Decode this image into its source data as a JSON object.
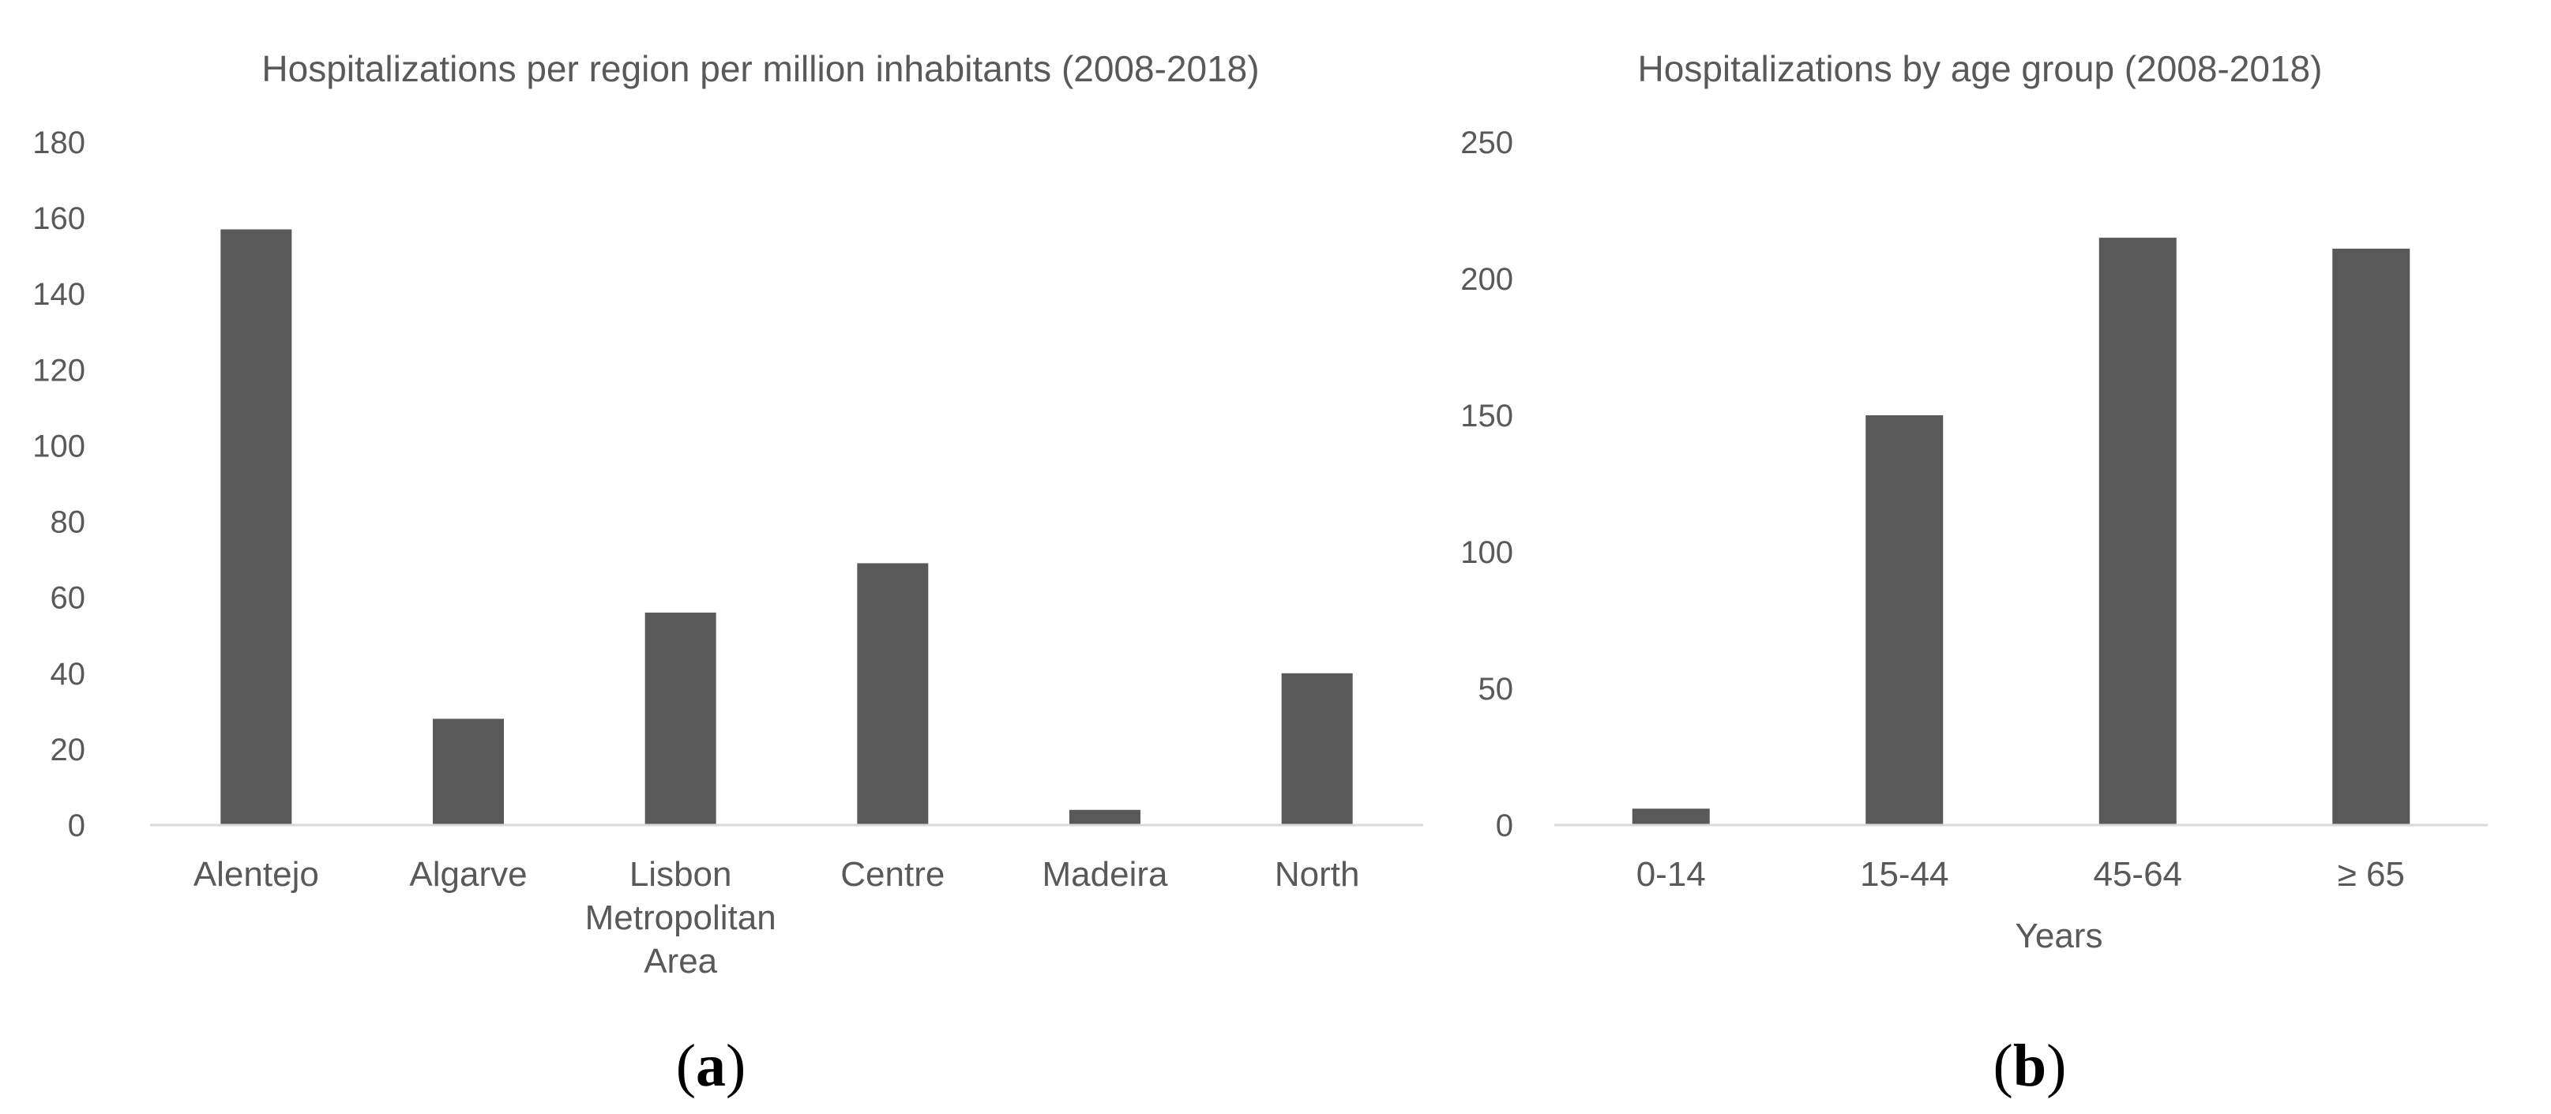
{
  "colors": {
    "bar": "#595959",
    "axis": "#d9d9d9",
    "text": "#595959"
  },
  "chart_data": [
    {
      "type": "bar",
      "title": "Hospitalizations per region per million inhabitants (2008-2018)",
      "categories": [
        "Alentejo",
        "Algarve",
        "Lisbon Metropolitan Area",
        "Centre",
        "Madeira",
        "North"
      ],
      "category_lines": [
        [
          "Alentejo"
        ],
        [
          "Algarve"
        ],
        [
          "Lisbon",
          "Metropolitan",
          "Area"
        ],
        [
          "Centre"
        ],
        [
          "Madeira"
        ],
        [
          "North"
        ]
      ],
      "values": [
        157,
        28,
        56,
        69,
        4,
        40
      ],
      "ylim": [
        0,
        180
      ],
      "yticks": [
        0,
        20,
        40,
        60,
        80,
        100,
        120,
        140,
        160,
        180
      ],
      "xlabel": "",
      "ylabel": "",
      "grid": false,
      "panel_label": {
        "open": "(",
        "letter": "a",
        "close": ")"
      }
    },
    {
      "type": "bar",
      "title": "Hospitalizations by age group (2008-2018)",
      "categories": [
        "0-14",
        "15-44",
        "45-64",
        "≥ 65"
      ],
      "category_lines": [
        [
          "0-14"
        ],
        [
          "15-44"
        ],
        [
          "45-64"
        ],
        [
          "≥ 65"
        ]
      ],
      "values": [
        6,
        150,
        215,
        211
      ],
      "ylim": [
        0,
        250
      ],
      "yticks": [
        0,
        50,
        100,
        150,
        200,
        250
      ],
      "xlabel": "Years",
      "ylabel": "",
      "grid": false,
      "panel_label": {
        "open": "(",
        "letter": "b",
        "close": ")"
      }
    }
  ]
}
